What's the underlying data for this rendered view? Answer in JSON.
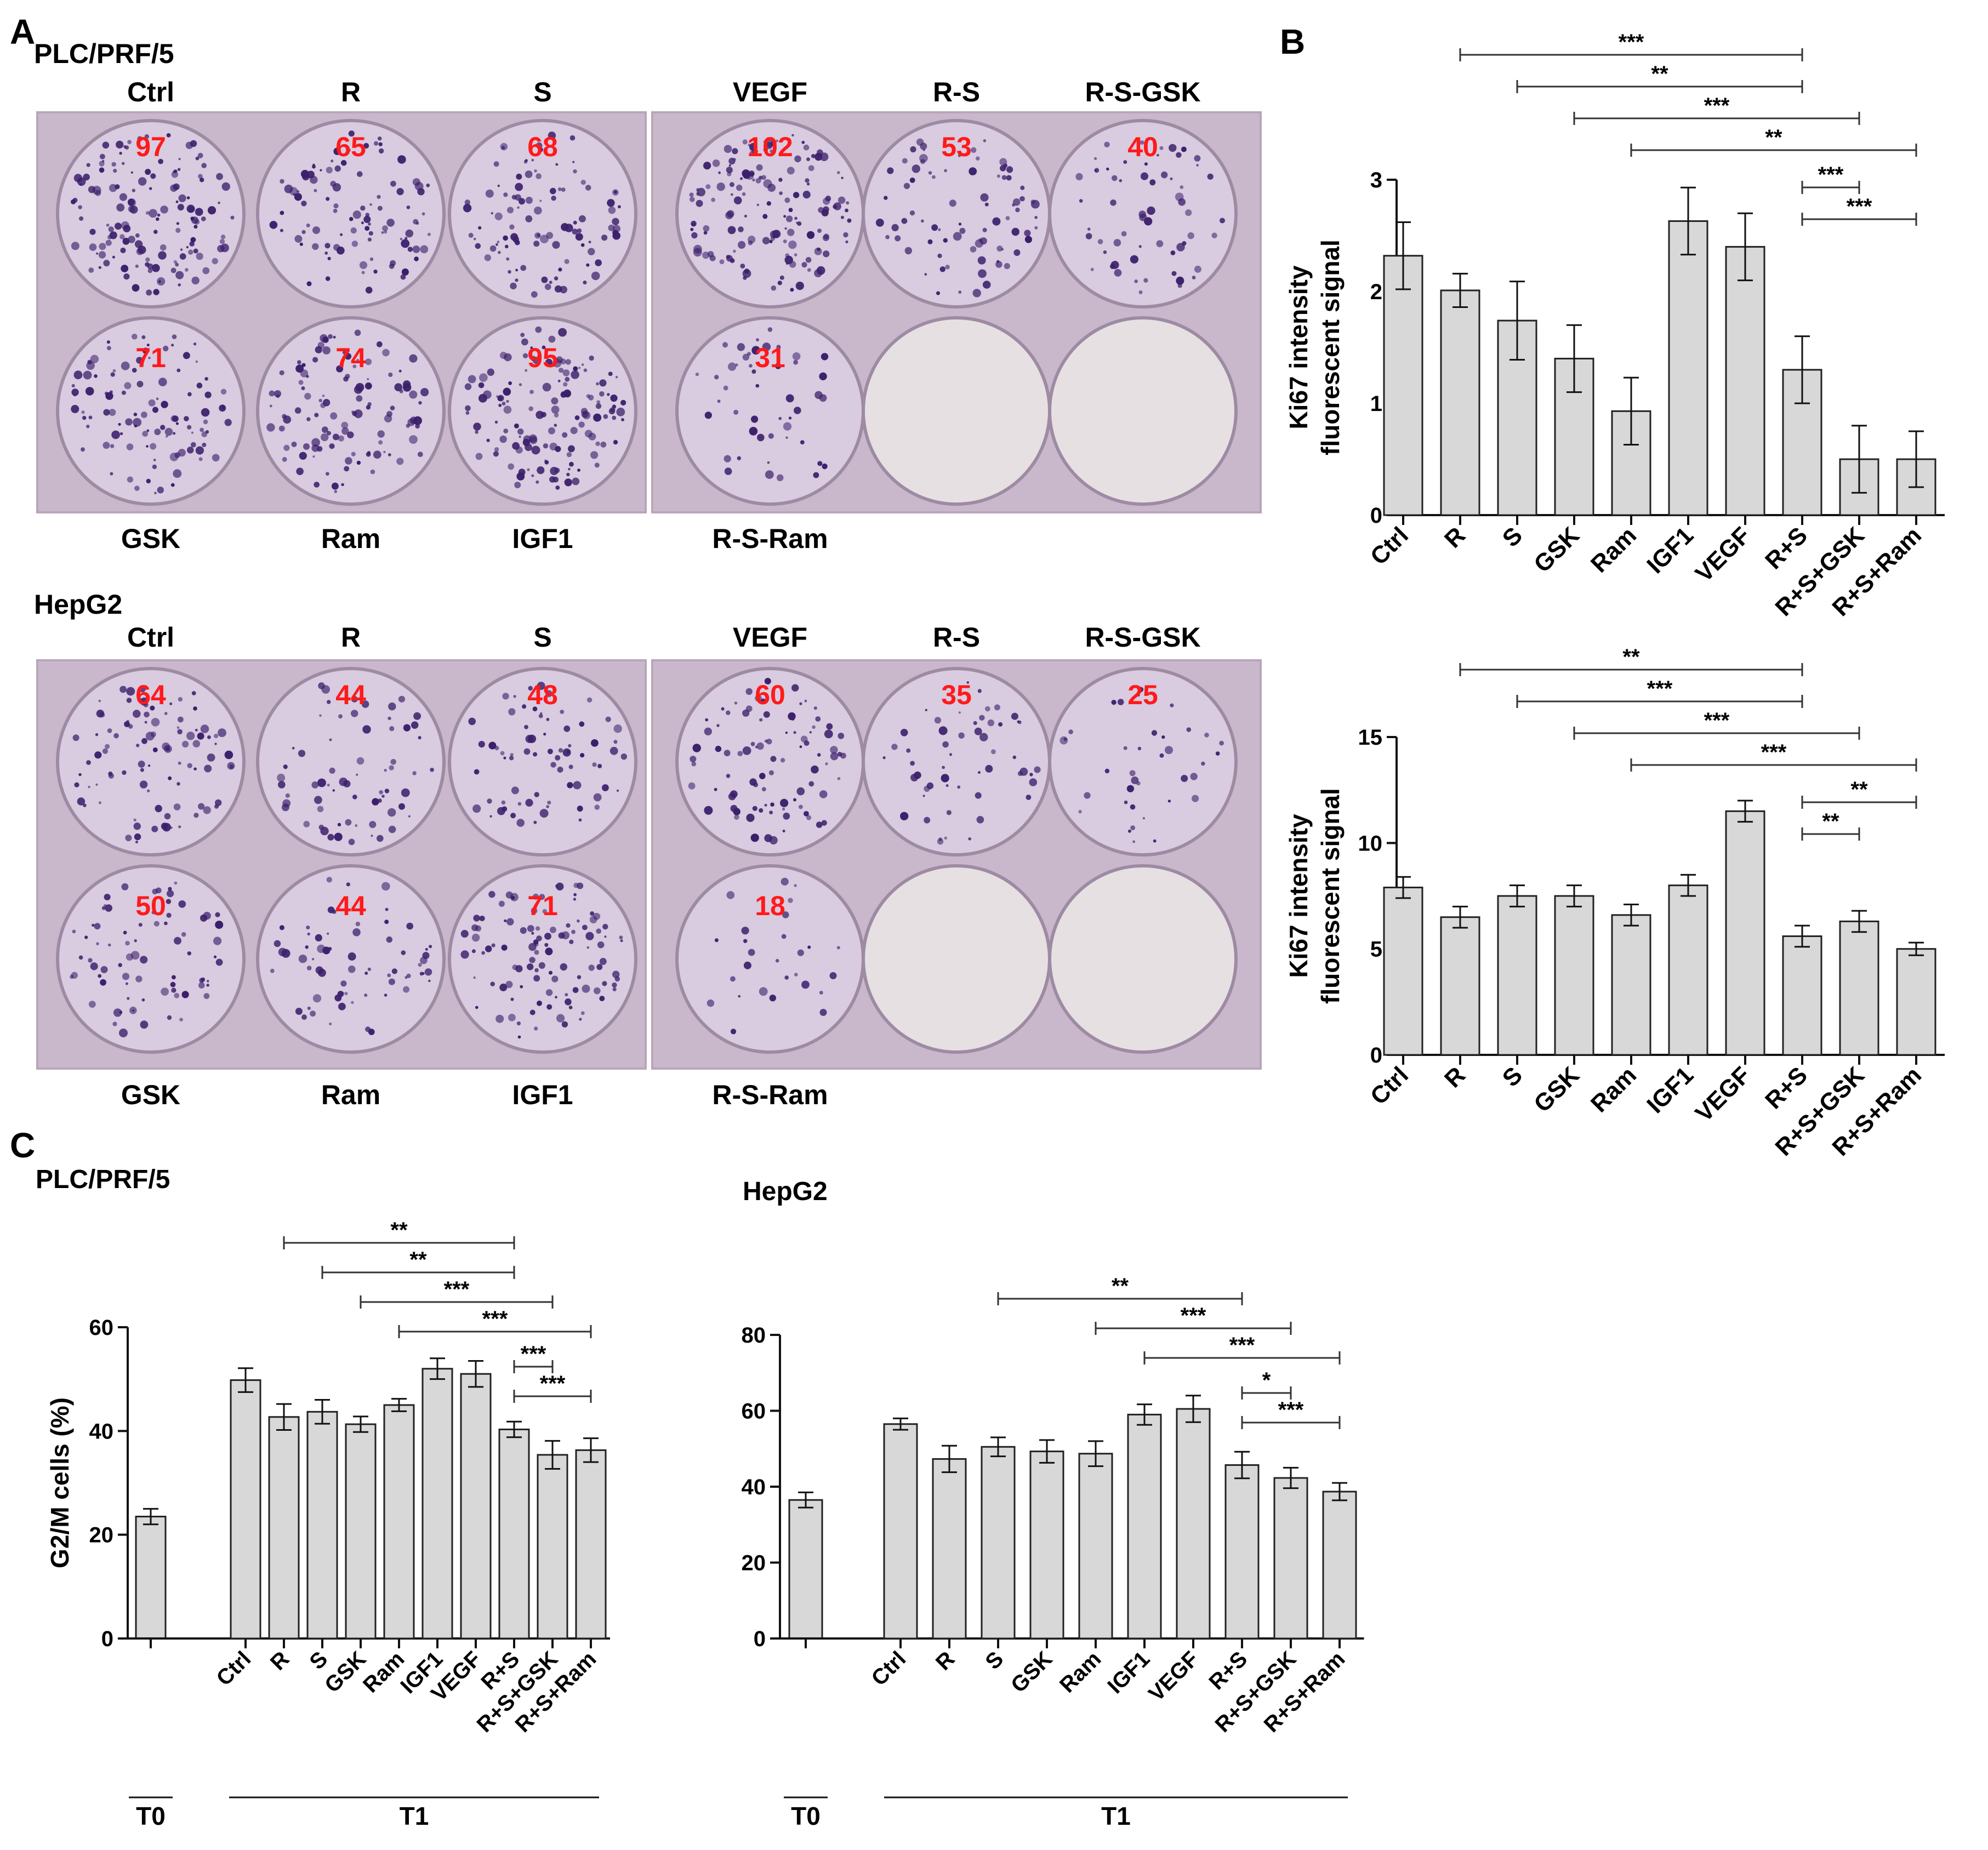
{
  "panel_letters": {
    "a": "A",
    "b": "B",
    "c": "C"
  },
  "colors": {
    "bar_fill": "#d8d8d8",
    "bar_stroke": "#222222",
    "count_text": "#ff1a1a",
    "plate_bg": "#c9b8cc",
    "well_fill": "#d9cbe0",
    "colony": "#3b1f6b"
  },
  "panel_a": {
    "plates": [
      {
        "cell_line": "PLC/PRF/5",
        "left_plate": {
          "top_labels": [
            "Ctrl",
            "R",
            "S"
          ],
          "bottom_labels": [
            "GSK",
            "Ram",
            "IGF1"
          ],
          "counts_top": [
            "97",
            "65",
            "68"
          ],
          "counts_bottom": [
            "71",
            "74",
            "95"
          ],
          "colony_density": [
            0.97,
            0.65,
            0.68,
            0.71,
            0.74,
            0.95
          ]
        },
        "right_plate": {
          "top_labels": [
            "VEGF",
            "R-S",
            "R-S-GSK"
          ],
          "bottom_labels": [
            "R-S-Ram"
          ],
          "counts_top": [
            "102",
            "53",
            "40"
          ],
          "counts_bottom": [
            "31"
          ],
          "colony_density": [
            1.02,
            0.53,
            0.4,
            0.31,
            0.0,
            0.0
          ]
        }
      },
      {
        "cell_line": "HepG2",
        "left_plate": {
          "top_labels": [
            "Ctrl",
            "R",
            "S"
          ],
          "bottom_labels": [
            "GSK",
            "Ram",
            "IGF1"
          ],
          "counts_top": [
            "64",
            "44",
            "48"
          ],
          "counts_bottom": [
            "50",
            "44",
            "71"
          ],
          "colony_density": [
            0.64,
            0.44,
            0.48,
            0.5,
            0.44,
            0.71
          ]
        },
        "right_plate": {
          "top_labels": [
            "VEGF",
            "R-S",
            "R-S-GSK"
          ],
          "bottom_labels": [
            "R-S-Ram"
          ],
          "counts_top": [
            "60",
            "35",
            "25"
          ],
          "counts_bottom": [
            "18"
          ],
          "colony_density": [
            0.6,
            0.35,
            0.25,
            0.18,
            0.0,
            0.0
          ]
        }
      }
    ]
  },
  "chart_data": [
    {
      "id": "b_top",
      "type": "bar",
      "panel": "B",
      "ylabel": "Ki67 intensity\nfluorescent signal",
      "ylim": [
        0,
        3
      ],
      "yticks": [
        "0",
        "1",
        "2",
        "3"
      ],
      "categories": [
        "Ctrl",
        "R",
        "S",
        "GSK",
        "Ram",
        "IGF1",
        "VEGF",
        "R+S",
        "R+S+GSK",
        "R+S+Ram"
      ],
      "values": [
        2.32,
        2.01,
        1.74,
        1.4,
        0.93,
        2.63,
        2.4,
        1.3,
        0.5,
        0.5
      ],
      "errors": [
        0.3,
        0.15,
        0.35,
        0.3,
        0.3,
        0.3,
        0.3,
        0.3,
        0.3,
        0.25
      ],
      "significance": [
        {
          "from": "R",
          "to": "R+S",
          "label": "***"
        },
        {
          "from": "S",
          "to": "R+S",
          "label": "**"
        },
        {
          "from": "GSK",
          "to": "R+S+GSK",
          "label": "***"
        },
        {
          "from": "Ram",
          "to": "R+S+Ram",
          "label": "**"
        },
        {
          "from": "R+S",
          "to": "R+S+GSK",
          "label": "***"
        },
        {
          "from": "R+S",
          "to": "R+S+Ram",
          "label": "***"
        }
      ]
    },
    {
      "id": "b_bottom",
      "type": "bar",
      "panel": "B",
      "ylabel": "Ki67 intensity\nfluorescent signal",
      "ylim": [
        0,
        15
      ],
      "yticks": [
        "0",
        "5",
        "10",
        "15"
      ],
      "categories": [
        "Ctrl",
        "R",
        "S",
        "GSK",
        "Ram",
        "IGF1",
        "VEGF",
        "R+S",
        "R+S+GSK",
        "R+S+Ram"
      ],
      "values": [
        7.9,
        6.5,
        7.5,
        7.5,
        6.6,
        8.0,
        11.5,
        5.6,
        6.3,
        5.0
      ],
      "errors": [
        0.5,
        0.5,
        0.5,
        0.5,
        0.5,
        0.5,
        0.5,
        0.5,
        0.5,
        0.3
      ],
      "significance": [
        {
          "from": "R",
          "to": "R+S",
          "label": "**"
        },
        {
          "from": "S",
          "to": "R+S",
          "label": "***"
        },
        {
          "from": "GSK",
          "to": "R+S+GSK",
          "label": "***"
        },
        {
          "from": "Ram",
          "to": "R+S+Ram",
          "label": "***"
        },
        {
          "from": "R+S",
          "to": "R+S+Ram",
          "label": "**"
        },
        {
          "from": "R+S",
          "to": "R+S+GSK",
          "label": "**"
        }
      ]
    },
    {
      "id": "c_left",
      "type": "bar",
      "panel": "C",
      "title": "PLC/PRF/5",
      "ylabel": "G2/M cells (%)",
      "ylim": [
        0,
        60
      ],
      "yticks": [
        "0",
        "20",
        "40",
        "60"
      ],
      "t0": {
        "label": "T0",
        "value": 23.5,
        "error": 1.5
      },
      "group_label": "T1",
      "categories": [
        "Ctrl",
        "R",
        "S",
        "GSK",
        "Ram",
        "IGF1",
        "VEGF",
        "R+S",
        "R+S+GSK",
        "R+S+Ram"
      ],
      "values": [
        49.8,
        42.7,
        43.7,
        41.3,
        45.0,
        52.0,
        51.0,
        40.3,
        35.4,
        36.3
      ],
      "errors": [
        2.3,
        2.5,
        2.3,
        1.5,
        1.2,
        2.0,
        2.5,
        1.5,
        2.7,
        2.3
      ],
      "significance": [
        {
          "from": "R",
          "to": "R+S",
          "label": "**"
        },
        {
          "from": "S",
          "to": "R+S",
          "label": "**"
        },
        {
          "from": "GSK",
          "to": "R+S+GSK",
          "label": "***"
        },
        {
          "from": "Ram",
          "to": "R+S+Ram",
          "label": "***"
        },
        {
          "from": "R+S",
          "to": "R+S+GSK",
          "label": "***"
        },
        {
          "from": "R+S",
          "to": "R+S+Ram",
          "label": "***"
        }
      ]
    },
    {
      "id": "c_right",
      "type": "bar",
      "panel": "C",
      "title": "HepG2",
      "ylabel": "",
      "ylim": [
        0,
        80
      ],
      "yticks": [
        "0",
        "20",
        "40",
        "60",
        "80"
      ],
      "t0": {
        "label": "T0",
        "value": 36.5,
        "error": 2.0
      },
      "group_label": "T1",
      "categories": [
        "Ctrl",
        "R",
        "S",
        "GSK",
        "Ram",
        "IGF1",
        "VEGF",
        "R+S",
        "R+S+GSK",
        "R+S+Ram"
      ],
      "values": [
        56.5,
        47.3,
        50.5,
        49.3,
        48.7,
        59.0,
        60.5,
        45.7,
        42.3,
        38.7
      ],
      "errors": [
        1.5,
        3.5,
        2.5,
        3.0,
        3.3,
        2.7,
        3.5,
        3.5,
        2.7,
        2.3
      ],
      "significance": [
        {
          "from": "S",
          "to": "R+S",
          "label": "**"
        },
        {
          "from": "Ram",
          "to": "R+S+GSK",
          "label": "***"
        },
        {
          "from": "IGF1",
          "to": "R+S+Ram",
          "label": "***"
        },
        {
          "from": "R+S",
          "to": "R+S+GSK",
          "label": "*"
        },
        {
          "from": "R+S",
          "to": "R+S+Ram",
          "label": "***"
        }
      ]
    }
  ]
}
